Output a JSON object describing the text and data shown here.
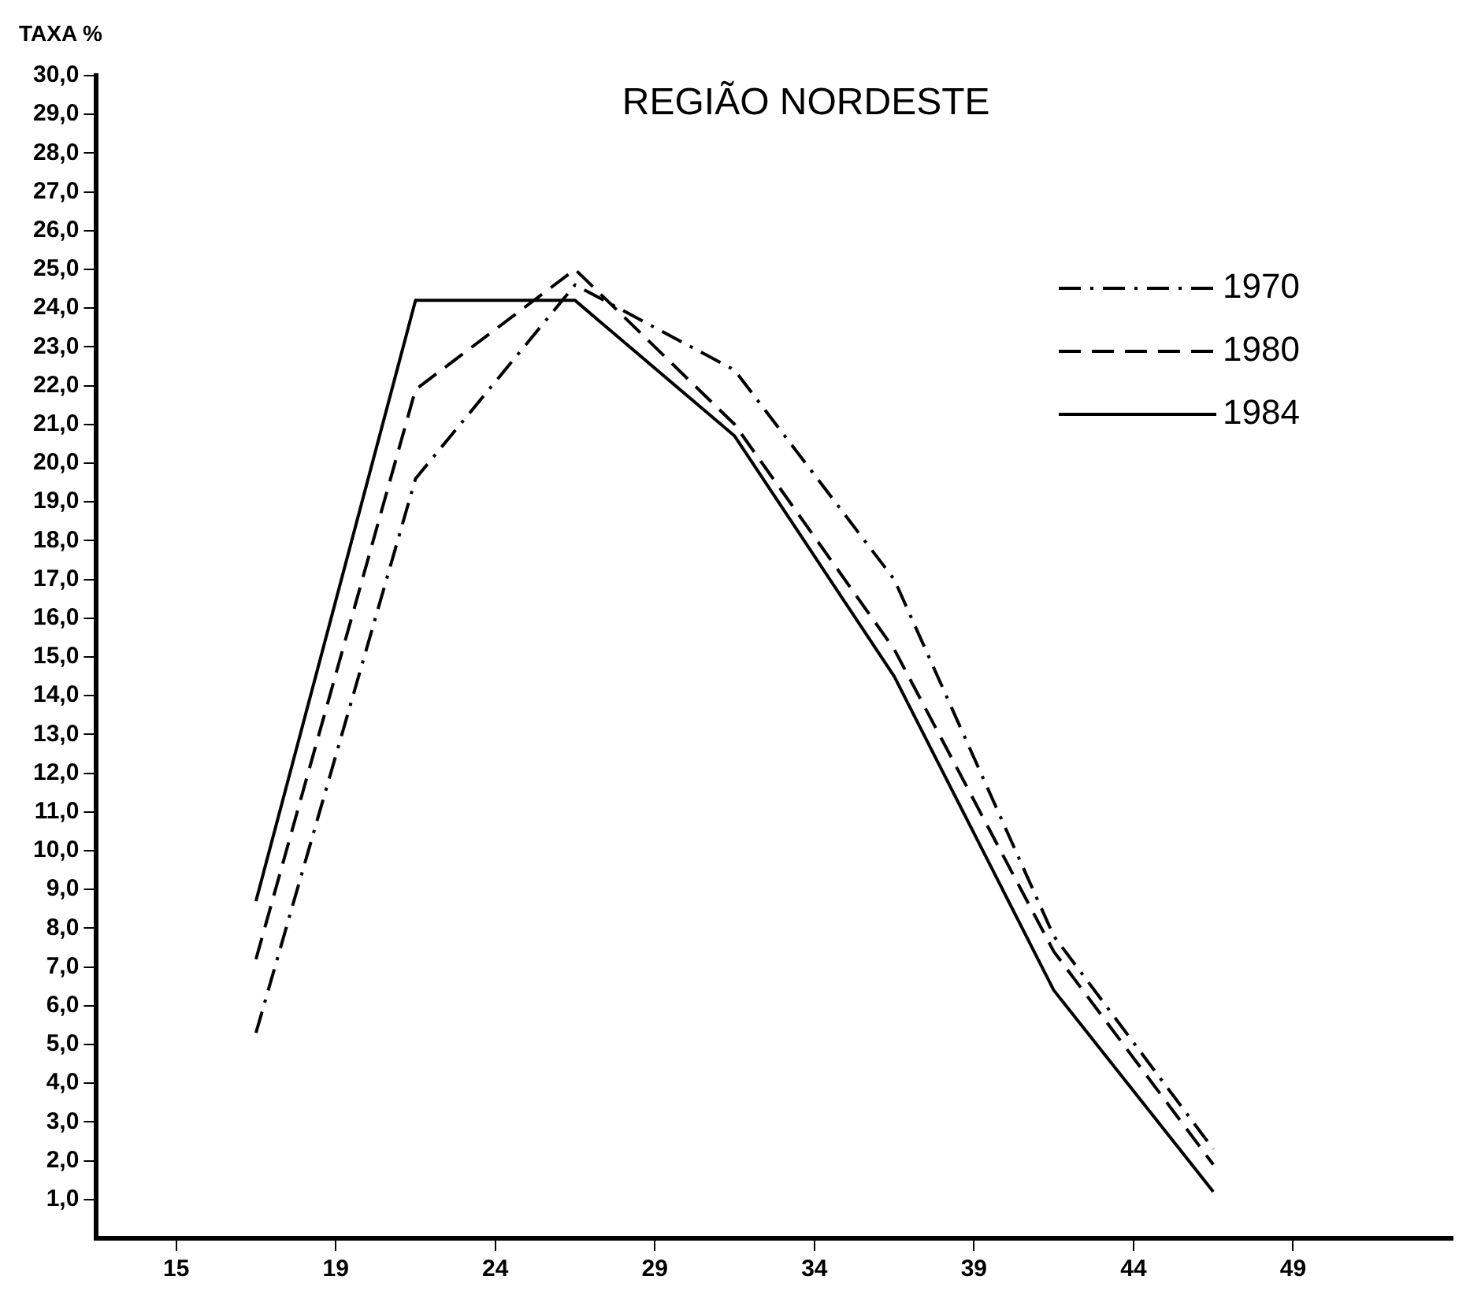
{
  "chart_data": {
    "type": "line",
    "title": "REGIÃO NORDESTE",
    "ylabel": "TAXA %",
    "categories": [
      null,
      "15",
      null,
      "19",
      null,
      "24",
      null,
      "29",
      null,
      "34",
      null,
      "39",
      null,
      "44",
      null,
      "49",
      null,
      null
    ],
    "series": [
      {
        "name": "1970",
        "color": "#000000",
        "line_style": "dashdot",
        "values": [
          null,
          null,
          5.3,
          null,
          19.6,
          null,
          24.6,
          null,
          22.4,
          null,
          17.0,
          null,
          7.8,
          null,
          2.3,
          null,
          null,
          null
        ]
      },
      {
        "name": "1980",
        "color": "#000000",
        "line_style": "dashed",
        "values": [
          null,
          null,
          7.2,
          null,
          21.9,
          null,
          25.0,
          null,
          21.0,
          null,
          15.2,
          null,
          7.4,
          null,
          1.9,
          null,
          null,
          null
        ]
      },
      {
        "name": "1984",
        "color": "#000000",
        "line_style": "solid",
        "values": [
          null,
          null,
          8.7,
          null,
          24.2,
          null,
          24.2,
          null,
          20.7,
          null,
          14.5,
          null,
          6.4,
          null,
          1.2,
          null,
          null,
          null
        ]
      }
    ],
    "ylim": [
      0,
      30
    ],
    "yticks": [
      {
        "value": 1,
        "label": "1,0"
      },
      {
        "value": 2,
        "label": "2,0"
      },
      {
        "value": 3,
        "label": "3,0"
      },
      {
        "value": 4,
        "label": "4,0"
      },
      {
        "value": 5,
        "label": "5,0"
      },
      {
        "value": 6,
        "label": "6,0"
      },
      {
        "value": 7,
        "label": "7,0"
      },
      {
        "value": 8,
        "label": "8,0"
      },
      {
        "value": 9,
        "label": "9,0"
      },
      {
        "value": 10,
        "label": "10,0"
      },
      {
        "value": 11,
        "label": "11,0"
      },
      {
        "value": 12,
        "label": "12,0"
      },
      {
        "value": 13,
        "label": "13,0"
      },
      {
        "value": 14,
        "label": "14,0"
      },
      {
        "value": 15,
        "label": "15,0"
      },
      {
        "value": 16,
        "label": "16,0"
      },
      {
        "value": 17,
        "label": "17,0"
      },
      {
        "value": 18,
        "label": "18,0"
      },
      {
        "value": 19,
        "label": "19,0"
      },
      {
        "value": 20,
        "label": "20,0"
      },
      {
        "value": 21,
        "label": "21,0"
      },
      {
        "value": 22,
        "label": "22,0"
      },
      {
        "value": 23,
        "label": "23,0"
      },
      {
        "value": 24,
        "label": "24,0"
      },
      {
        "value": 25,
        "label": "25,0"
      },
      {
        "value": 26,
        "label": "26,0"
      },
      {
        "value": 27,
        "label": "27,0"
      },
      {
        "value": 28,
        "label": "28,0"
      },
      {
        "value": 29,
        "label": "29,0"
      },
      {
        "value": 30,
        "label": "30,0"
      }
    ],
    "grid": false,
    "legend": "top right",
    "marker": "none"
  }
}
